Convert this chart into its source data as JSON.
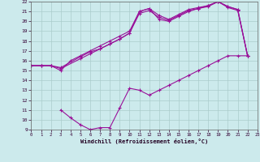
{
  "xlabel": "Windchill (Refroidissement éolien,°C)",
  "bg_color": "#cceaec",
  "grid_color": "#aacccc",
  "line_color": "#991199",
  "xlim": [
    0,
    23
  ],
  "ylim": [
    9,
    22
  ],
  "xticks": [
    0,
    1,
    2,
    3,
    4,
    5,
    6,
    7,
    8,
    9,
    10,
    11,
    12,
    13,
    14,
    15,
    16,
    17,
    18,
    19,
    20,
    21,
    22,
    23
  ],
  "yticks": [
    9,
    10,
    11,
    12,
    13,
    14,
    15,
    16,
    17,
    18,
    19,
    20,
    21,
    22
  ],
  "line1_x": [
    0,
    1,
    2,
    3,
    4,
    5,
    6,
    7,
    8,
    9,
    10,
    11,
    12,
    13,
    14,
    15,
    16,
    17,
    18,
    19,
    20,
    21,
    22
  ],
  "line1_y": [
    15.5,
    15.5,
    15.5,
    15.0,
    16.0,
    16.5,
    17.0,
    17.5,
    18.0,
    18.5,
    19.0,
    21.0,
    21.3,
    20.2,
    20.0,
    20.5,
    21.0,
    21.3,
    21.5,
    22.0,
    21.5,
    21.2,
    16.5
  ],
  "line2_x": [
    0,
    1,
    2,
    3,
    5,
    6,
    7,
    8,
    9,
    10,
    11,
    12,
    13,
    14,
    15,
    16,
    17,
    18,
    19,
    20,
    21,
    22
  ],
  "line2_y": [
    15.5,
    15.5,
    15.5,
    15.2,
    16.2,
    16.7,
    17.2,
    17.7,
    18.2,
    18.8,
    20.8,
    21.1,
    20.4,
    20.1,
    20.6,
    21.1,
    21.3,
    21.6,
    22.0,
    21.5,
    21.2,
    16.5
  ],
  "line3_x": [
    0,
    1,
    2,
    3,
    5,
    6,
    7,
    8,
    9,
    10,
    11,
    12,
    13,
    14,
    15,
    16,
    17,
    18,
    19,
    20,
    21,
    22
  ],
  "line3_y": [
    15.5,
    15.5,
    15.5,
    15.3,
    16.4,
    16.9,
    17.2,
    17.7,
    18.2,
    18.8,
    21.0,
    21.3,
    20.6,
    20.2,
    20.7,
    21.2,
    21.4,
    21.6,
    22.0,
    21.4,
    21.1,
    16.5
  ],
  "line4_x": [
    3,
    4,
    5,
    6,
    7,
    8,
    9,
    10,
    11,
    12,
    13,
    14,
    15,
    16,
    17,
    18,
    19,
    20,
    21,
    22
  ],
  "line4_y": [
    11.0,
    10.2,
    9.5,
    9.0,
    9.2,
    9.2,
    11.2,
    13.2,
    13.0,
    12.5,
    13.0,
    13.5,
    14.0,
    14.5,
    15.0,
    15.5,
    16.0,
    16.5,
    16.5,
    16.5
  ]
}
